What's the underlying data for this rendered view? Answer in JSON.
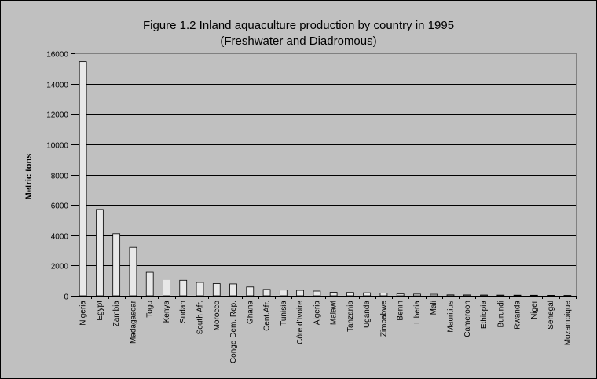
{
  "chart_data": {
    "type": "bar",
    "title": "Figure 1.2 Inland aquaculture production by country in 1995",
    "subtitle": "(Freshwater and Diadromous)",
    "xlabel": "",
    "ylabel": "Metric tons",
    "ylim": [
      0,
      16000
    ],
    "yticks": [
      "0",
      "2000",
      "4000",
      "6000",
      "8000",
      "10000",
      "12000",
      "14000",
      "16000"
    ],
    "grid": true,
    "legend": "none",
    "colors": {
      "bar": "#e8e8e8",
      "plot_background": "#c0c0c0",
      "grid": "#000000"
    },
    "categories": [
      "Nigeria",
      "Egypt",
      "Zambia",
      "Madagascar",
      "Togo",
      "Kenya",
      "Sudan",
      "South Afr.",
      "Morocco",
      "Congo Dem. Rep.",
      "Ghana",
      "Cent.Afr.",
      "Tunisia",
      "Côte d'Ivoire",
      "Algeria",
      "Malawi",
      "Tanzania",
      "Uganda",
      "Zimbabwe",
      "Benin",
      "Liberia",
      "Mali",
      "Mauritius",
      "Cameroon",
      "Ethiopia",
      "Burundi",
      "Rwanda",
      "Niger",
      "Senegal",
      "Mozambique"
    ],
    "values": [
      15450,
      5700,
      4100,
      3200,
      1550,
      1100,
      1020,
      880,
      800,
      780,
      580,
      420,
      380,
      360,
      310,
      230,
      220,
      200,
      180,
      120,
      110,
      100,
      60,
      55,
      50,
      45,
      40,
      35,
      30,
      25
    ]
  }
}
